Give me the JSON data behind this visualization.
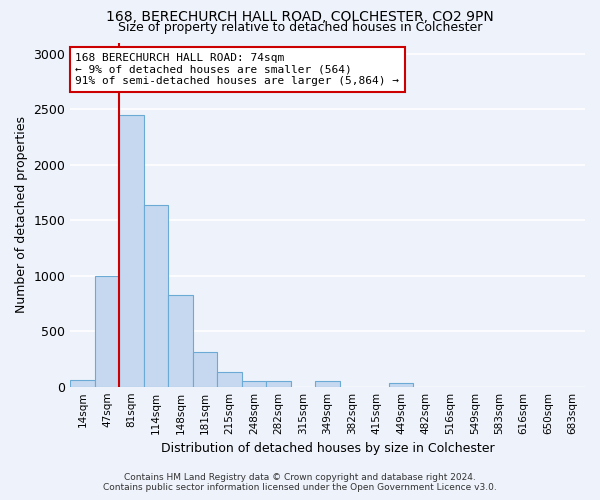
{
  "title1": "168, BERECHURCH HALL ROAD, COLCHESTER, CO2 9PN",
  "title2": "Size of property relative to detached houses in Colchester",
  "xlabel": "Distribution of detached houses by size in Colchester",
  "ylabel": "Number of detached properties",
  "bar_color": "#c5d8f0",
  "bar_edge_color": "#6aaad4",
  "categories": [
    "14sqm",
    "47sqm",
    "81sqm",
    "114sqm",
    "148sqm",
    "181sqm",
    "215sqm",
    "248sqm",
    "282sqm",
    "315sqm",
    "349sqm",
    "382sqm",
    "415sqm",
    "449sqm",
    "482sqm",
    "516sqm",
    "549sqm",
    "583sqm",
    "616sqm",
    "650sqm",
    "683sqm"
  ],
  "values": [
    60,
    1000,
    2450,
    1640,
    830,
    310,
    130,
    55,
    50,
    0,
    55,
    0,
    0,
    30,
    0,
    0,
    0,
    0,
    0,
    0,
    0
  ],
  "ylim": [
    0,
    3100
  ],
  "yticks": [
    0,
    500,
    1000,
    1500,
    2000,
    2500,
    3000
  ],
  "vline_index": 2,
  "annotation_text": "168 BERECHURCH HALL ROAD: 74sqm\n← 9% of detached houses are smaller (564)\n91% of semi-detached houses are larger (5,864) →",
  "annotation_box_color": "#ffffff",
  "annotation_box_edge": "#cc0000",
  "footer1": "Contains HM Land Registry data © Crown copyright and database right 2024.",
  "footer2": "Contains public sector information licensed under the Open Government Licence v3.0.",
  "background_color": "#eef2fa",
  "grid_color": "#ffffff",
  "title1_fontsize": 10,
  "title2_fontsize": 9
}
